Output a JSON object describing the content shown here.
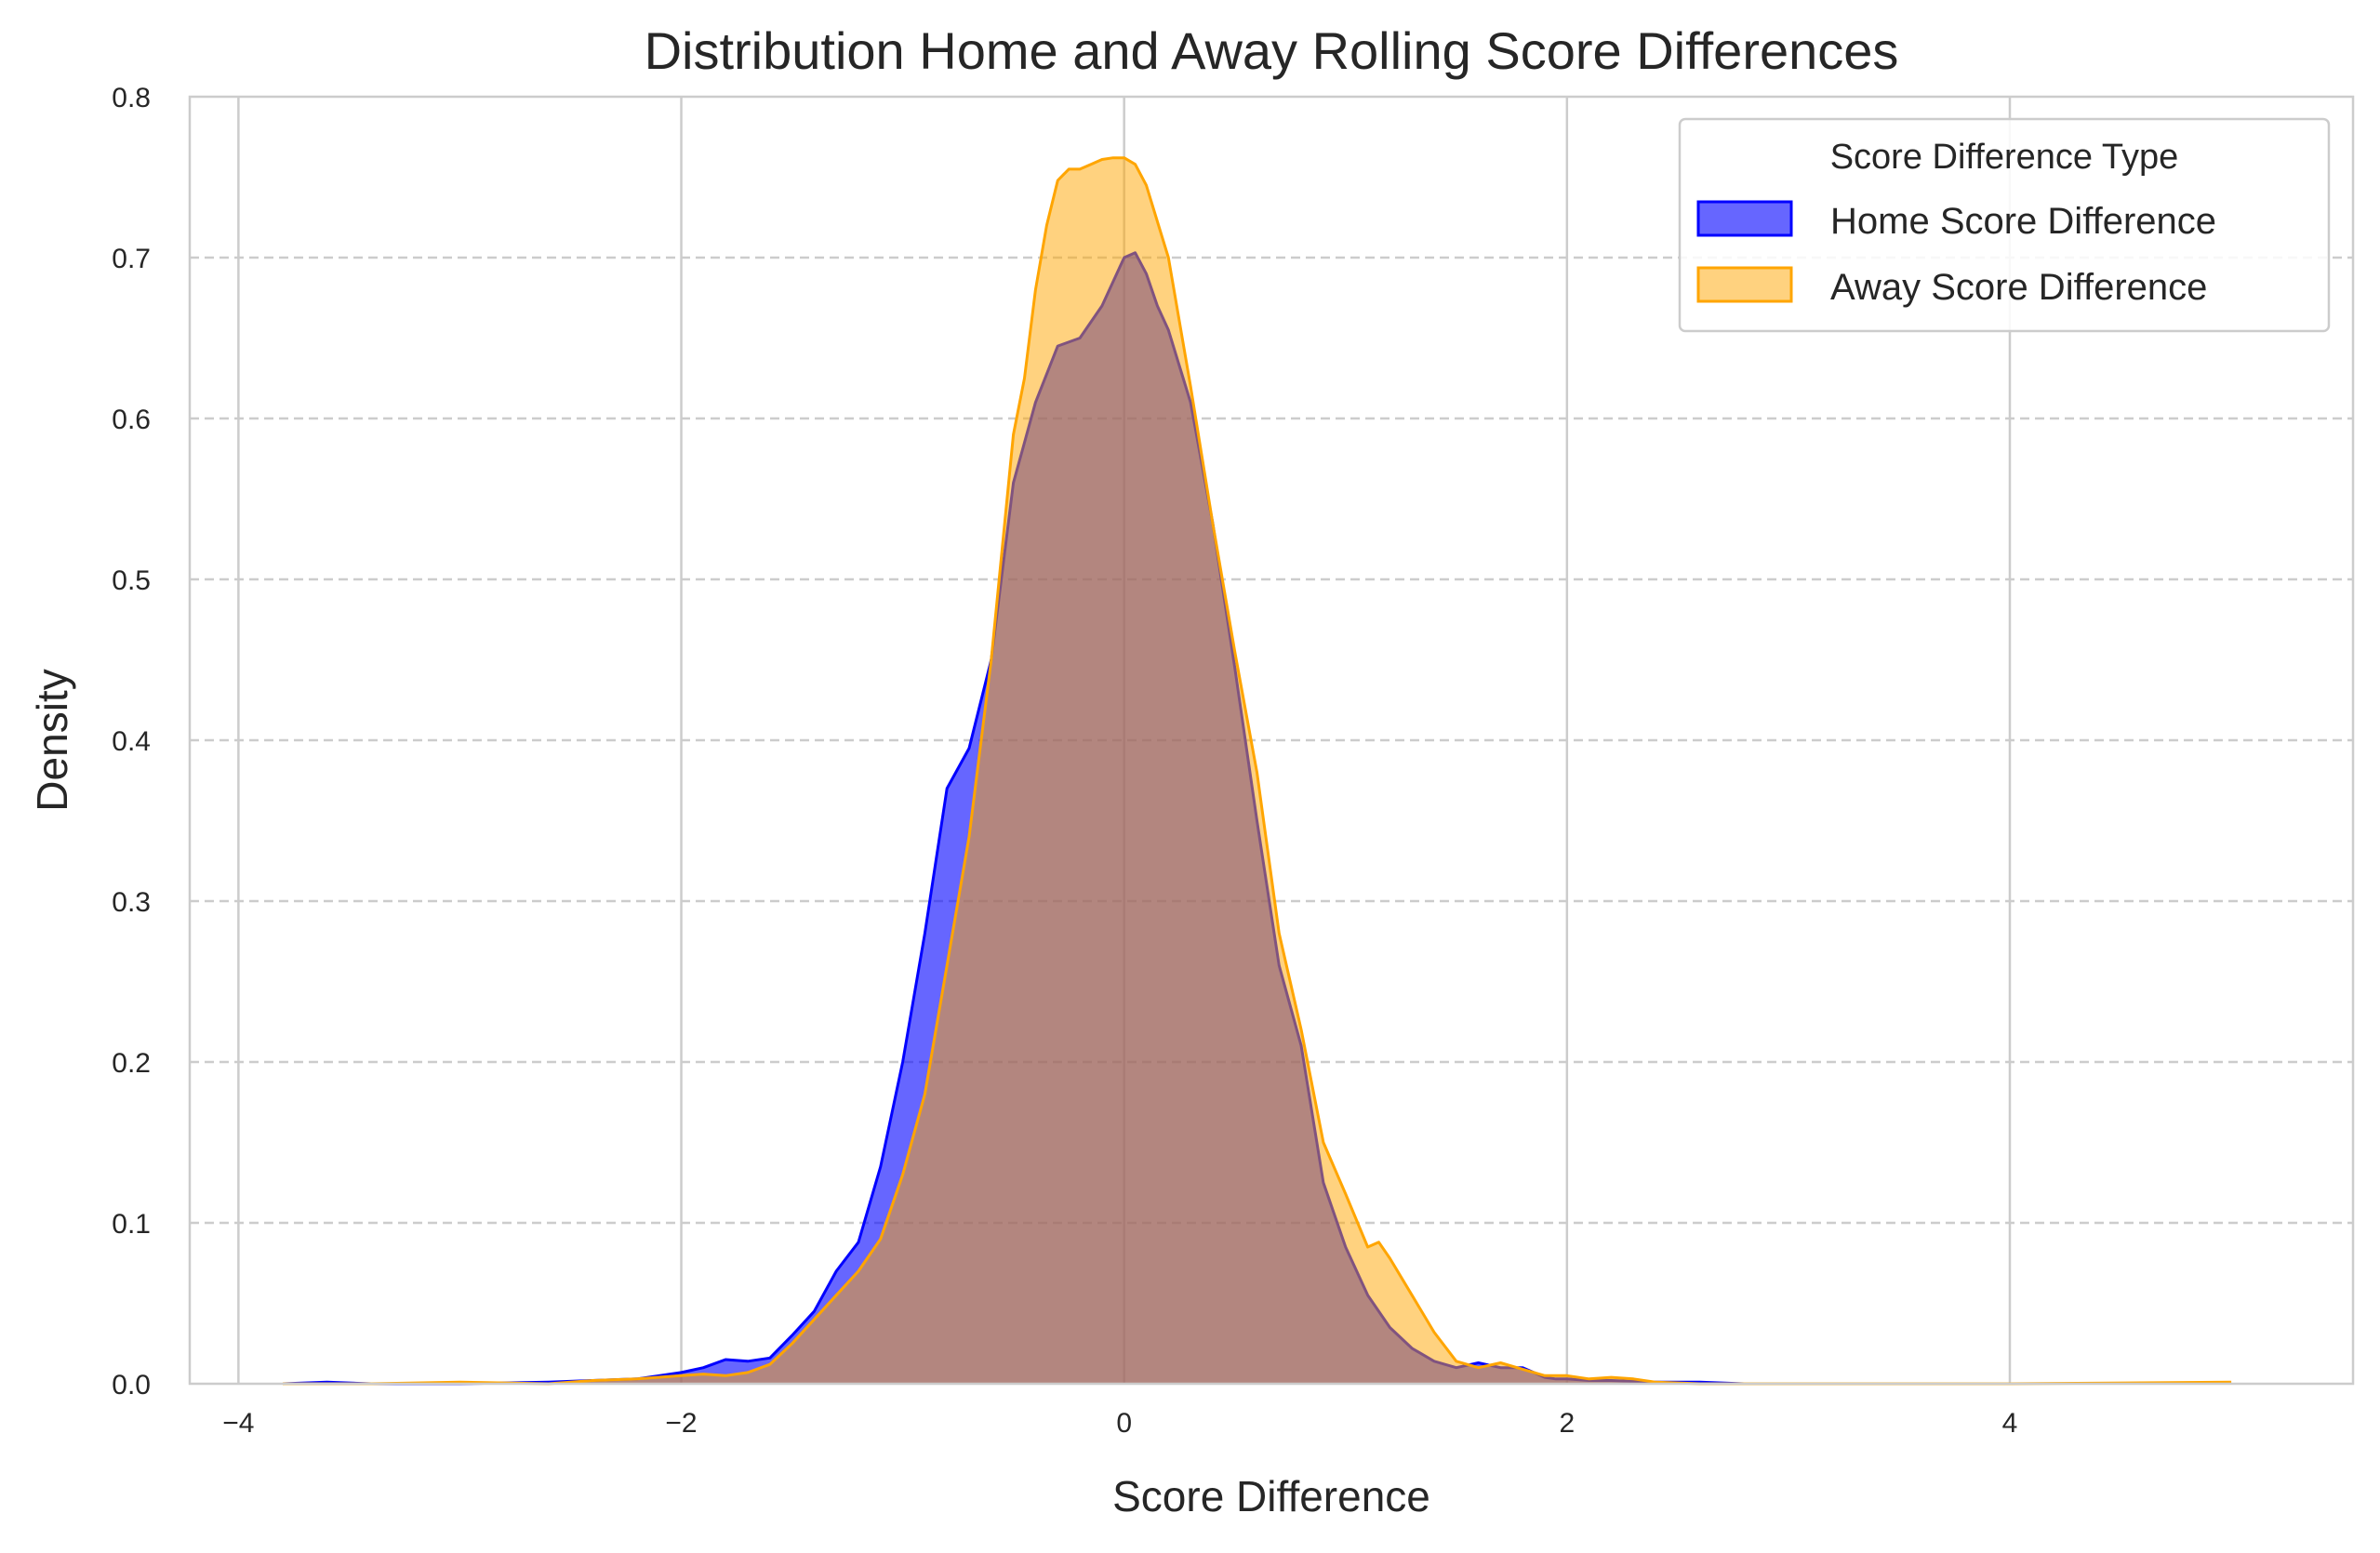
{
  "chart_data": {
    "type": "area",
    "title": "Distribution Home and Away Rolling Score Differences",
    "xlabel": "Score Difference",
    "ylabel": "Density",
    "xlim": [
      -4.22,
      5.55
    ],
    "ylim": [
      0,
      0.8
    ],
    "xticks": [
      -4,
      -2,
      0,
      2,
      4
    ],
    "xtick_labels": [
      "−4",
      "−2",
      "0",
      "2",
      "4"
    ],
    "yticks": [
      0.0,
      0.1,
      0.2,
      0.3,
      0.4,
      0.5,
      0.6,
      0.7,
      0.8
    ],
    "ytick_labels": [
      "0.0",
      "0.1",
      "0.2",
      "0.3",
      "0.4",
      "0.5",
      "0.6",
      "0.7",
      "0.8"
    ],
    "grid": {
      "x": "solid",
      "y": "dashed"
    },
    "legend": {
      "title": "Score Difference Type",
      "position": "top-right"
    },
    "series": [
      {
        "name": "Home Score Difference",
        "line_color": "#0000ff",
        "fill_color": "#0000ff",
        "fill_opacity": 0.6,
        "x": [
          -3.8,
          -3.6,
          -3.4,
          -3.0,
          -2.6,
          -2.4,
          -2.2,
          -2.0,
          -1.9,
          -1.8,
          -1.7,
          -1.6,
          -1.5,
          -1.4,
          -1.3,
          -1.2,
          -1.1,
          -1.0,
          -0.9,
          -0.8,
          -0.7,
          -0.6,
          -0.5,
          -0.45,
          -0.4,
          -0.3,
          -0.2,
          -0.1,
          0.0,
          0.05,
          0.1,
          0.15,
          0.2,
          0.3,
          0.4,
          0.5,
          0.6,
          0.7,
          0.8,
          0.9,
          1.0,
          1.1,
          1.2,
          1.3,
          1.4,
          1.5,
          1.6,
          1.7,
          1.8,
          1.9,
          1.95,
          2.0,
          2.1,
          2.2,
          2.4,
          2.6,
          2.8,
          3.0,
          3.2
        ],
        "values": [
          0.0,
          0.001,
          0.0,
          0.0,
          0.001,
          0.002,
          0.003,
          0.007,
          0.01,
          0.015,
          0.014,
          0.016,
          0.03,
          0.045,
          0.07,
          0.088,
          0.135,
          0.2,
          0.28,
          0.37,
          0.395,
          0.45,
          0.56,
          0.585,
          0.61,
          0.645,
          0.65,
          0.67,
          0.7,
          0.703,
          0.69,
          0.67,
          0.655,
          0.61,
          0.535,
          0.445,
          0.35,
          0.26,
          0.21,
          0.125,
          0.085,
          0.055,
          0.035,
          0.022,
          0.014,
          0.01,
          0.013,
          0.01,
          0.01,
          0.004,
          0.003,
          0.003,
          0.002,
          0.002,
          0.001,
          0.001,
          0.0,
          0.0,
          0.0
        ]
      },
      {
        "name": "Away Score Difference",
        "line_color": "#ffa500",
        "fill_color": "#ffa500",
        "fill_opacity": 0.5,
        "x": [
          -3.8,
          -3.4,
          -3.0,
          -2.6,
          -2.4,
          -2.2,
          -2.0,
          -1.9,
          -1.8,
          -1.7,
          -1.6,
          -1.5,
          -1.4,
          -1.3,
          -1.2,
          -1.1,
          -1.0,
          -0.9,
          -0.8,
          -0.7,
          -0.6,
          -0.5,
          -0.45,
          -0.4,
          -0.35,
          -0.3,
          -0.25,
          -0.2,
          -0.15,
          -0.1,
          -0.05,
          0.0,
          0.05,
          0.1,
          0.2,
          0.3,
          0.4,
          0.5,
          0.6,
          0.7,
          0.8,
          0.9,
          1.0,
          1.1,
          1.15,
          1.2,
          1.3,
          1.4,
          1.5,
          1.6,
          1.7,
          1.8,
          1.9,
          2.0,
          2.1,
          2.2,
          2.3,
          2.4,
          2.6,
          3.0,
          4.0,
          5.0
        ],
        "values": [
          0.0,
          0.0,
          0.001,
          0.0,
          0.002,
          0.003,
          0.005,
          0.006,
          0.005,
          0.007,
          0.012,
          0.025,
          0.04,
          0.055,
          0.07,
          0.09,
          0.13,
          0.18,
          0.26,
          0.34,
          0.45,
          0.59,
          0.625,
          0.68,
          0.72,
          0.748,
          0.755,
          0.755,
          0.758,
          0.761,
          0.762,
          0.762,
          0.758,
          0.745,
          0.7,
          0.62,
          0.535,
          0.455,
          0.38,
          0.28,
          0.22,
          0.15,
          0.118,
          0.085,
          0.088,
          0.078,
          0.055,
          0.032,
          0.014,
          0.01,
          0.013,
          0.009,
          0.005,
          0.005,
          0.003,
          0.004,
          0.003,
          0.001,
          0.0,
          0.0,
          0.0,
          0.001
        ]
      }
    ]
  }
}
